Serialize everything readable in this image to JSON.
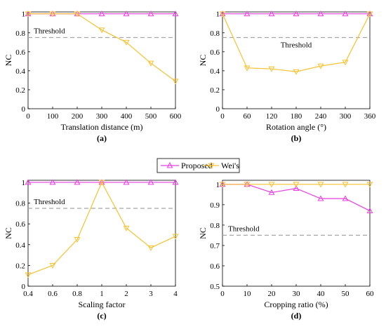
{
  "colors": {
    "proposed": "#e83de0",
    "wei": "#f5c231",
    "threshold": "#a6a6a6",
    "axis": "#000000"
  },
  "legend": {
    "proposed": "Proposed",
    "wei": "Wei's"
  },
  "chart_data": [
    {
      "type": "line",
      "sub_label": "(a)",
      "xlabel": "Translation distance (m)",
      "ylabel": "NC",
      "x_categories": [
        "0",
        "100",
        "200",
        "300",
        "400",
        "500",
        "600"
      ],
      "y_ticks": [
        "0",
        "0.2",
        "0.4",
        "0.6",
        "0.8",
        "1"
      ],
      "ylim": [
        0,
        1.02
      ],
      "threshold": 0.75,
      "threshold_label": "Threshold",
      "series": [
        {
          "name": "Proposed",
          "values": [
            1,
            1,
            1,
            1,
            1,
            1,
            1
          ]
        },
        {
          "name": "Wei's",
          "values": [
            1,
            1,
            1,
            0.83,
            0.7,
            0.48,
            0.29
          ]
        }
      ]
    },
    {
      "type": "line",
      "sub_label": "(b)",
      "xlabel": "Rotation angle (°)",
      "ylabel": "NC",
      "x_categories": [
        "0",
        "60",
        "120",
        "180",
        "240",
        "300",
        "360"
      ],
      "y_ticks": [
        "0",
        "0.2",
        "0.4",
        "0.6",
        "0.8",
        "1"
      ],
      "ylim": [
        0,
        1.02
      ],
      "threshold": 0.75,
      "threshold_label": "Threshold",
      "series": [
        {
          "name": "Proposed",
          "values": [
            1,
            1,
            1,
            1,
            1,
            1,
            1
          ]
        },
        {
          "name": "Wei's",
          "values": [
            1,
            0.43,
            0.42,
            0.39,
            0.45,
            0.49,
            1
          ]
        }
      ]
    },
    {
      "type": "line",
      "sub_label": "(c)",
      "xlabel": "Scaling factor",
      "ylabel": "NC",
      "x_categories": [
        "0.4",
        "0.6",
        "0.8",
        "1",
        "2",
        "3",
        "4"
      ],
      "y_ticks": [
        "0",
        "0.2",
        "0.4",
        "0.6",
        "0.8",
        "1"
      ],
      "ylim": [
        0,
        1.02
      ],
      "threshold": 0.75,
      "threshold_label": "Threshold",
      "series": [
        {
          "name": "Proposed",
          "values": [
            1,
            1,
            1,
            1,
            1,
            1,
            1
          ]
        },
        {
          "name": "Wei's",
          "values": [
            0.11,
            0.2,
            0.45,
            1,
            0.56,
            0.37,
            0.48
          ]
        }
      ]
    },
    {
      "type": "line",
      "sub_label": "(d)",
      "xlabel": "Cropping ratio (%)",
      "ylabel": "NC",
      "x_categories": [
        "0",
        "10",
        "20",
        "30",
        "40",
        "50",
        "60"
      ],
      "y_ticks": [
        "0.5",
        "0.6",
        "0.7",
        "0.8",
        "0.9",
        "1"
      ],
      "ylim": [
        0.5,
        1.02
      ],
      "threshold": 0.75,
      "threshold_label": "Threshold",
      "series": [
        {
          "name": "Proposed",
          "values": [
            1,
            1,
            0.96,
            0.98,
            0.93,
            0.93,
            0.87
          ]
        },
        {
          "name": "Wei's",
          "values": [
            1,
            1,
            1,
            1,
            1,
            1,
            1
          ]
        }
      ]
    }
  ]
}
